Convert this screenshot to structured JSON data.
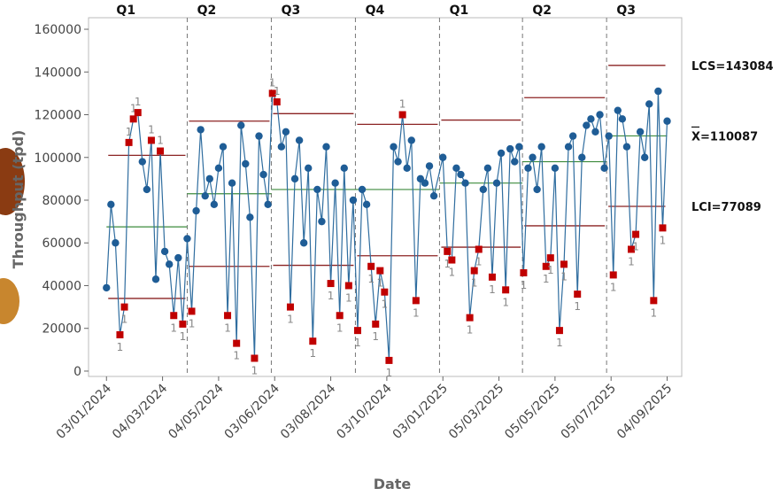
{
  "chart_data": {
    "type": "control",
    "x_label": "Date",
    "y_label": "Throughput (tpd)",
    "xlim": [
      -16,
      513
    ],
    "ylim": [
      -2500,
      165400
    ],
    "yticks": [
      0,
      20000,
      40000,
      60000,
      80000,
      100000,
      120000,
      140000,
      160000
    ],
    "xticks": [
      {
        "value": 0,
        "label": "03/01/2024"
      },
      {
        "value": 50,
        "label": "04/03/2024"
      },
      {
        "value": 100,
        "label": "04/05/2024"
      },
      {
        "value": 150,
        "label": "03/06/2024"
      },
      {
        "value": 200,
        "label": "03/08/2024"
      },
      {
        "value": 250,
        "label": "03/10/2024"
      },
      {
        "value": 300,
        "label": "03/01/2025"
      },
      {
        "value": 350,
        "label": "05/03/2025"
      },
      {
        "value": 400,
        "label": "05/05/2025"
      },
      {
        "value": 450,
        "label": "05/07/2025"
      },
      {
        "value": 500,
        "label": "04/09/2025"
      }
    ],
    "point_color": "#1f5d96",
    "line_color": "#2f6d9f",
    "flag_color": "#c00000",
    "limit_color": "#8b2323",
    "center_color": "#3d8b3d",
    "flag_label": "1",
    "stages": [
      {
        "name": "Q1",
        "start": 0,
        "end": 72,
        "center": 67500,
        "ucl": 101000,
        "lcl": 34000
      },
      {
        "name": "Q2",
        "start": 72,
        "end": 147,
        "center": 83000,
        "ucl": 117000,
        "lcl": 49000
      },
      {
        "name": "Q3",
        "start": 147,
        "end": 222,
        "center": 85000,
        "ucl": 120500,
        "lcl": 49500
      },
      {
        "name": "Q4",
        "start": 222,
        "end": 297,
        "center": 85000,
        "ucl": 115500,
        "lcl": 54000
      },
      {
        "name": "Q1",
        "start": 297,
        "end": 371,
        "center": 88000,
        "ucl": 117500,
        "lcl": 58000
      },
      {
        "name": "Q2",
        "start": 371,
        "end": 446,
        "center": 98000,
        "ucl": 128000,
        "lcl": 68000
      },
      {
        "name": "Q3",
        "start": 446,
        "end": 500,
        "center": 110087,
        "ucl": 143084,
        "lcl": 77089
      }
    ],
    "annotations": [
      "LCS=143084",
      "X=110087",
      "LCI=77089"
    ],
    "x": [
      0,
      4,
      8,
      12,
      16,
      20,
      24,
      28,
      32,
      36,
      40,
      44,
      48,
      52,
      56,
      60,
      64,
      68,
      72,
      76,
      80,
      84,
      88,
      92,
      96,
      100,
      104,
      108,
      112,
      116,
      120,
      124,
      128,
      132,
      136,
      140,
      144,
      148,
      152,
      156,
      160,
      164,
      168,
      172,
      176,
      180,
      184,
      188,
      192,
      196,
      200,
      204,
      208,
      212,
      216,
      220,
      224,
      228,
      232,
      236,
      240,
      244,
      248,
      252,
      256,
      260,
      264,
      268,
      272,
      276,
      280,
      284,
      288,
      292,
      300,
      304,
      308,
      312,
      316,
      320,
      324,
      328,
      332,
      336,
      340,
      344,
      348,
      352,
      356,
      360,
      364,
      368,
      372,
      376,
      380,
      384,
      388,
      392,
      396,
      400,
      404,
      408,
      412,
      416,
      420,
      424,
      428,
      432,
      436,
      440,
      444,
      448,
      452,
      456,
      460,
      464,
      468,
      472,
      476,
      480,
      484,
      488,
      492,
      496,
      500
    ],
    "values": [
      39000,
      78000,
      60000,
      17000,
      30000,
      107000,
      118000,
      121000,
      98000,
      85000,
      108000,
      43000,
      103000,
      56000,
      50000,
      26000,
      53000,
      22000,
      62000,
      28000,
      75000,
      113000,
      82000,
      90000,
      78000,
      95000,
      105000,
      26000,
      88000,
      13000,
      115000,
      97000,
      72000,
      6000,
      110000,
      92000,
      78000,
      130000,
      126000,
      105000,
      112000,
      30000,
      90000,
      108000,
      60000,
      95000,
      14000,
      85000,
      70000,
      105000,
      41000,
      88000,
      26000,
      95000,
      40000,
      80000,
      19000,
      85000,
      78000,
      49000,
      22000,
      47000,
      37000,
      5000,
      105000,
      98000,
      120000,
      95000,
      108000,
      33000,
      90000,
      88000,
      96000,
      82000,
      100000,
      56000,
      52000,
      95000,
      92000,
      88000,
      25000,
      47000,
      57000,
      85000,
      95000,
      44000,
      88000,
      102000,
      38000,
      104000,
      98000,
      105000,
      46000,
      95000,
      100000,
      85000,
      105000,
      49000,
      53000,
      95000,
      19000,
      50000,
      105000,
      110000,
      36000,
      100000,
      115000,
      118000,
      112000,
      120000,
      95000,
      110000,
      45000,
      122000,
      118000,
      105000,
      57000,
      64000,
      112000,
      100000,
      125000,
      33000,
      131000,
      67000,
      117000
    ]
  }
}
